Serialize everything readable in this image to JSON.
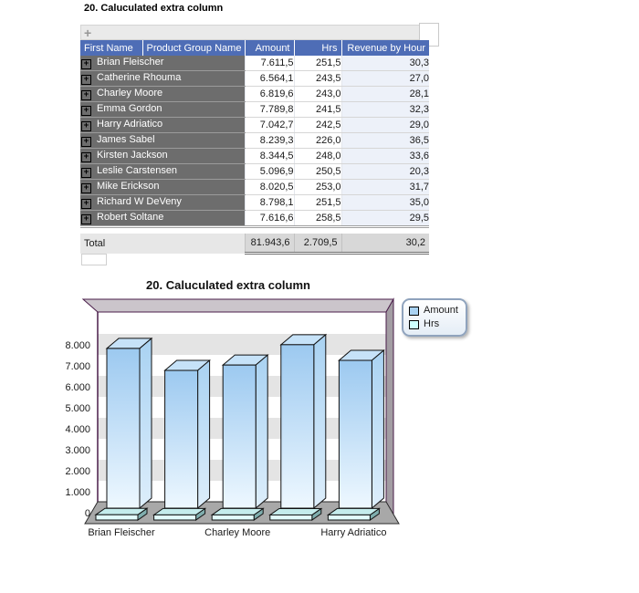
{
  "table": {
    "title": "20. Caluculated extra column",
    "toolbar": {
      "add_label": "+"
    },
    "expand_icon": "+",
    "columns": [
      "First Name",
      "Product Group Name",
      "Amount",
      "Hrs",
      "Revenue by Hour"
    ],
    "rows": [
      {
        "name": "Brian Fleischer",
        "amount": "7.611,5",
        "hrs": "251,5",
        "revenue": "30,3"
      },
      {
        "name": "Catherine Rhouma",
        "amount": "6.564,1",
        "hrs": "243,5",
        "revenue": "27,0"
      },
      {
        "name": "Charley Moore",
        "amount": "6.819,6",
        "hrs": "243,0",
        "revenue": "28,1"
      },
      {
        "name": "Emma Gordon",
        "amount": "7.789,8",
        "hrs": "241,5",
        "revenue": "32,3"
      },
      {
        "name": "Harry Adriatico",
        "amount": "7.042,7",
        "hrs": "242,5",
        "revenue": "29,0"
      },
      {
        "name": "James Sabel",
        "amount": "8.239,3",
        "hrs": "226,0",
        "revenue": "36,5"
      },
      {
        "name": "Kirsten Jackson",
        "amount": "8.344,5",
        "hrs": "248,0",
        "revenue": "33,6"
      },
      {
        "name": "Leslie Carstensen",
        "amount": "5.096,9",
        "hrs": "250,5",
        "revenue": "20,3"
      },
      {
        "name": "Mike Erickson",
        "amount": "8.020,5",
        "hrs": "253,0",
        "revenue": "31,7"
      },
      {
        "name": "Richard W DeVeny",
        "amount": "8.798,1",
        "hrs": "251,5",
        "revenue": "35,0"
      },
      {
        "name": "Robert Soltane",
        "amount": "7.616,6",
        "hrs": "258,5",
        "revenue": "29,5"
      }
    ],
    "total": {
      "label": "Total",
      "amount": "81.943,6",
      "hrs": "2.709,5",
      "revenue": "30,2"
    }
  },
  "chart": {
    "title": "20. Caluculated extra column",
    "legend": [
      {
        "label": "Amount",
        "color": "#a9d2f2"
      },
      {
        "label": "Hrs",
        "color": "#ccffff"
      }
    ]
  },
  "chart_data": {
    "type": "bar",
    "style": "3d",
    "title": "20. Caluculated extra column",
    "categories": [
      "Brian Fleischer",
      "Catherine Rhouma",
      "Charley Moore",
      "Emma Gordon",
      "Harry Adriatico"
    ],
    "x_tick_labels_visible": [
      "Brian Fleischer",
      "Charley Moore",
      "Harry Adriatico"
    ],
    "series": [
      {
        "name": "Amount",
        "values": [
          7611.5,
          6564.1,
          6819.6,
          7789.8,
          7042.7
        ]
      },
      {
        "name": "Hrs",
        "values": [
          251.5,
          243.5,
          243.0,
          241.5,
          242.5
        ]
      }
    ],
    "ylim": [
      0,
      9000
    ],
    "yticks": [
      0,
      1000,
      2000,
      3000,
      4000,
      5000,
      6000,
      7000,
      8000
    ],
    "ytick_labels": [
      "0",
      "1.000",
      "2.000",
      "3.000",
      "4.000",
      "5.000",
      "6.000",
      "7.000",
      "8.000"
    ],
    "legend_position": "top-right",
    "grid": "banded"
  },
  "colors": {
    "header_bg": "#4e6db6",
    "name_cell_bg": "#6d6d6d",
    "revenue_cell_bg": "#edf1f9",
    "amount_bar_top": "#9cc9f0",
    "amount_bar_bottom": "#eef8ff",
    "amount_bar_side_top": "#a9d2f2",
    "amount_bar_side_bottom": "#ddeefb",
    "amount_bar_cap": "#c6e2f8",
    "hrs_bar_front": "#e2fdfd",
    "hrs_bar_cap": "#c4ecec",
    "hrs_bar_side": "#7fadad",
    "chart_frame": "#4a1d4a",
    "frame_bevel_top": "#cbc5cb",
    "frame_bevel_right": "#a39da3",
    "wall_band": "#e4e4e4",
    "wall_white": "#ffffff",
    "floor": "#a8a8a8"
  }
}
